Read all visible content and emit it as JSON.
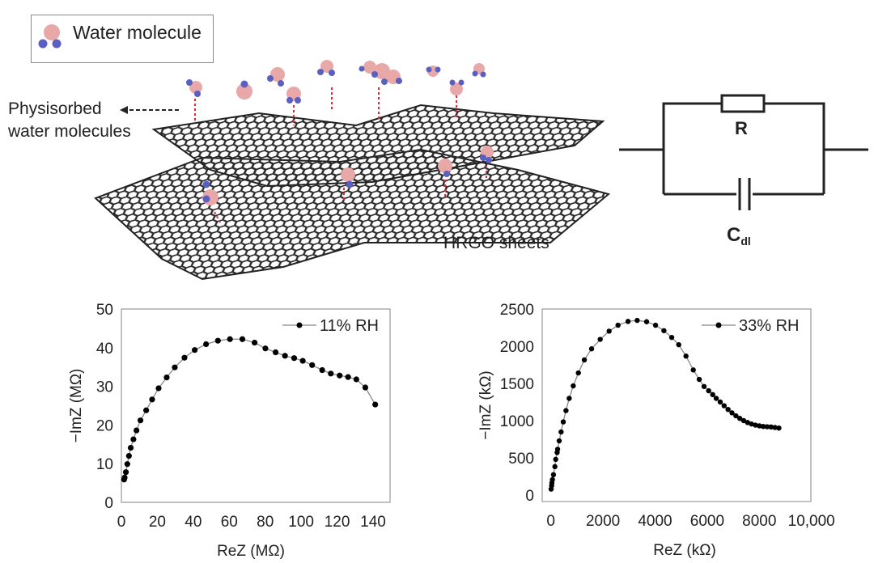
{
  "illustration": {
    "legend_label": "Water molecule",
    "physisorbed_label_line1": "Physisorbed",
    "physisorbed_label_line2": "water molecules",
    "sheets_label": "HRGO sheets",
    "colors": {
      "oxygen": "#e8a8a8",
      "hydrogen": "#5a5fc0",
      "sheet": "#2a2a2a",
      "hbond": "#d0303a"
    }
  },
  "circuit": {
    "resistor_label": "R",
    "capacitor_label": "C",
    "capacitor_subscript": "dl"
  },
  "chart_data": [
    {
      "type": "scatter",
      "title": "",
      "xlabel": "ReZ (MΩ)",
      "ylabel": "−ImZ (MΩ)",
      "xlim": [
        0,
        150
      ],
      "ylim": [
        0,
        50
      ],
      "xticks": [
        0,
        20,
        40,
        60,
        80,
        100,
        120,
        140
      ],
      "yticks": [
        0,
        10,
        20,
        30,
        40,
        50
      ],
      "grid": false,
      "legend_placement": "top-right",
      "series": [
        {
          "name": "11% RH",
          "color": "#000000",
          "x": [
            1.5,
            1.8,
            2.5,
            3.3,
            4.2,
            5.2,
            6.7,
            8.4,
            10.6,
            13.8,
            17.1,
            20.7,
            25.2,
            29.7,
            35.1,
            40.8,
            47.1,
            53.7,
            60.4,
            67.3,
            74.1,
            80.1,
            85.8,
            91.0,
            96.1,
            100.9,
            106.1,
            111.7,
            116.5,
            121.4,
            126.1,
            130.7,
            135.7,
            141.2
          ],
          "y": [
            5.9,
            6.4,
            7.8,
            9.9,
            12.0,
            14.1,
            16.3,
            18.6,
            21.2,
            23.8,
            26.6,
            29.5,
            32.3,
            34.9,
            37.4,
            39.4,
            40.9,
            41.8,
            42.2,
            42.2,
            41.3,
            39.8,
            38.8,
            37.9,
            37.3,
            36.6,
            35.5,
            34.2,
            33.3,
            32.8,
            32.4,
            31.8,
            29.7,
            25.3
          ]
        }
      ]
    },
    {
      "type": "scatter",
      "title": "",
      "xlabel": "ReZ (kΩ)",
      "ylabel": "−ImZ (kΩ)",
      "xlim": [
        0,
        10000
      ],
      "ylim": [
        0,
        2500
      ],
      "xticks": [
        "0",
        "2000",
        "4000",
        "6000",
        "8000",
        "10,000"
      ],
      "xtick_values": [
        0,
        2000,
        4000,
        6000,
        8000,
        10000
      ],
      "yticks": [
        0,
        500,
        1000,
        1500,
        2000,
        2500
      ],
      "grid": false,
      "legend_placement": "top-right",
      "series": [
        {
          "name": "33% RH",
          "color": "#000000",
          "x": [
            10,
            30,
            40,
            60,
            100,
            155,
            186,
            240,
            260,
            320,
            393,
            476,
            580,
            704,
            859,
            1056,
            1284,
            1563,
            1894,
            2236,
            2578,
            2961,
            3313,
            3675,
            4017,
            4338,
            4638,
            4907,
            5186,
            5466,
            5694,
            5880,
            6056,
            6211,
            6346,
            6500,
            6650,
            6800,
            6950,
            7100,
            7250,
            7400,
            7550,
            7700,
            7850,
            8000,
            8150,
            8300,
            8450,
            8600,
            8750
          ],
          "y": [
            80,
            127,
            164,
            207,
            273,
            382,
            480,
            571,
            615,
            728,
            848,
            983,
            1135,
            1299,
            1467,
            1641,
            1816,
            1965,
            2092,
            2202,
            2282,
            2333,
            2347,
            2329,
            2282,
            2209,
            2118,
            2020,
            1867,
            1681,
            1554,
            1459,
            1401,
            1350,
            1299,
            1250,
            1200,
            1150,
            1105,
            1065,
            1030,
            1000,
            975,
            955,
            940,
            930,
            922,
            918,
            915,
            908,
            900
          ]
        }
      ]
    }
  ]
}
